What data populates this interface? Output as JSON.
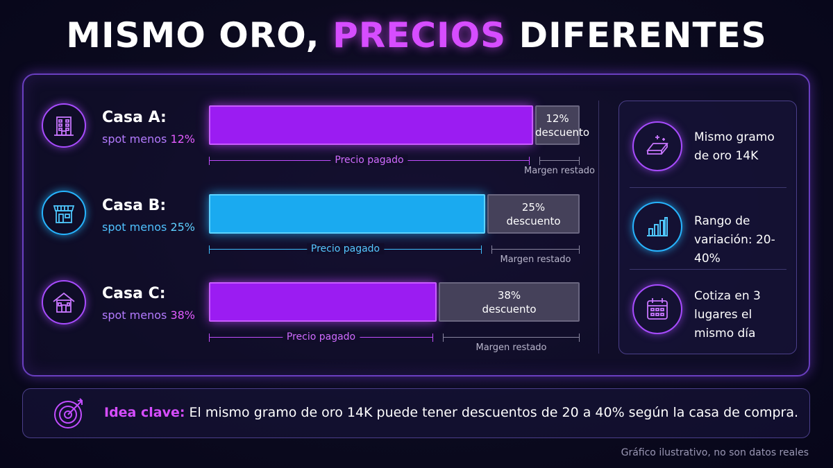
{
  "title": {
    "part1": "MISMO ORO,",
    "highlight": "PRECIOS",
    "part2": "DIFERENTES"
  },
  "rows": [
    {
      "name": "Casa A:",
      "sub_prefix": "spot menos",
      "sub_pct": "12%",
      "icon": "building-icon",
      "theme": "purple",
      "discount_pct": "12%",
      "discount_word": "descuento",
      "paid_label": "Precio pagado",
      "margin_label": "Margen restado"
    },
    {
      "name": "Casa B:",
      "sub_prefix": "spot menos",
      "sub_pct": "25%",
      "icon": "storefront-icon",
      "theme": "blue",
      "discount_pct": "25%",
      "discount_word": "descuento",
      "paid_label": "Precio pagado",
      "margin_label": "Margen restado"
    },
    {
      "name": "Casa C:",
      "sub_prefix": "spot menos",
      "sub_pct": "38%",
      "icon": "house-icon",
      "theme": "purple",
      "discount_pct": "38%",
      "discount_word": "descuento",
      "paid_label": "Precio pagado",
      "margin_label": "Margen restado"
    }
  ],
  "side": [
    {
      "icon": "gold-bar-icon",
      "text": "Mismo gramo de oro 14K"
    },
    {
      "icon": "bar-chart-icon",
      "text": "Rango de variación: 20-40%"
    },
    {
      "icon": "calendar-icon",
      "text": "Cotiza en 3 lugares el mismo día"
    }
  ],
  "key": {
    "lead": "Idea clave:",
    "text": "El mismo gramo de oro 14K puede tener descuentos de 20 a 40% según la casa de compra.",
    "icon": "target-icon"
  },
  "footnote": "Gráfico ilustrativo, no son datos reales",
  "colors": {
    "purple": "#9b1cf2",
    "blue": "#1aaaf0",
    "remainder": "#45415a",
    "accent": "#d64dff"
  },
  "chart_data": {
    "type": "bar",
    "orientation": "horizontal",
    "stacked": true,
    "categories": [
      "Casa A",
      "Casa B",
      "Casa C"
    ],
    "series": [
      {
        "name": "Precio pagado",
        "values": [
          88,
          75,
          62
        ]
      },
      {
        "name": "Margen restado",
        "values": [
          12,
          25,
          38
        ]
      }
    ],
    "unit": "% del spot"
  }
}
